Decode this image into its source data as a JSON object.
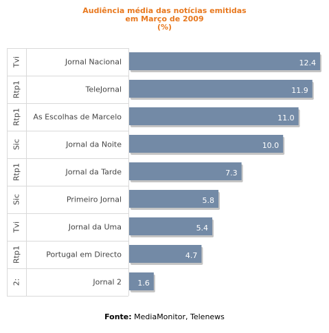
{
  "title_lines": [
    "Audiência média das notícias emitidas",
    "em Março de 2009",
    "(%)"
  ],
  "source": {
    "label": "Fonte:",
    "text": "MediaMonitor, Telenews"
  },
  "colors": {
    "bar": "#738aa6",
    "bar_shadow": "#c4c4c4",
    "title": "#e8781e",
    "grid": "#d9d9d9",
    "text": "#444444"
  },
  "chart_data": {
    "type": "bar",
    "orientation": "horizontal",
    "title": "Audiência média das notícias emitidas em Março de 2009 (%)",
    "channels": [
      "Tvi",
      "Rtp1",
      "Rtp1",
      "Sic",
      "Rtp1",
      "Sic",
      "Tvi",
      "Rtp1",
      "2:"
    ],
    "categories": [
      "Jornal Nacional",
      "TeleJornal",
      "As Escolhas de Marcelo",
      "Jornal da Noite",
      "Jornal da Tarde",
      "Primeiro Jornal",
      "Jornal da Uma",
      "Portugal em Directo",
      "Jornal 2"
    ],
    "values": [
      12.4,
      11.9,
      11.0,
      10.0,
      7.3,
      5.8,
      5.4,
      4.7,
      1.6
    ],
    "data_labels": [
      "12.4",
      "11.9",
      "11.0",
      "10.0",
      "7.3",
      "5.8",
      "5.4",
      "4.7",
      "1.6"
    ],
    "xlim": [
      0,
      12.4
    ],
    "grid": false,
    "legend": "none"
  }
}
